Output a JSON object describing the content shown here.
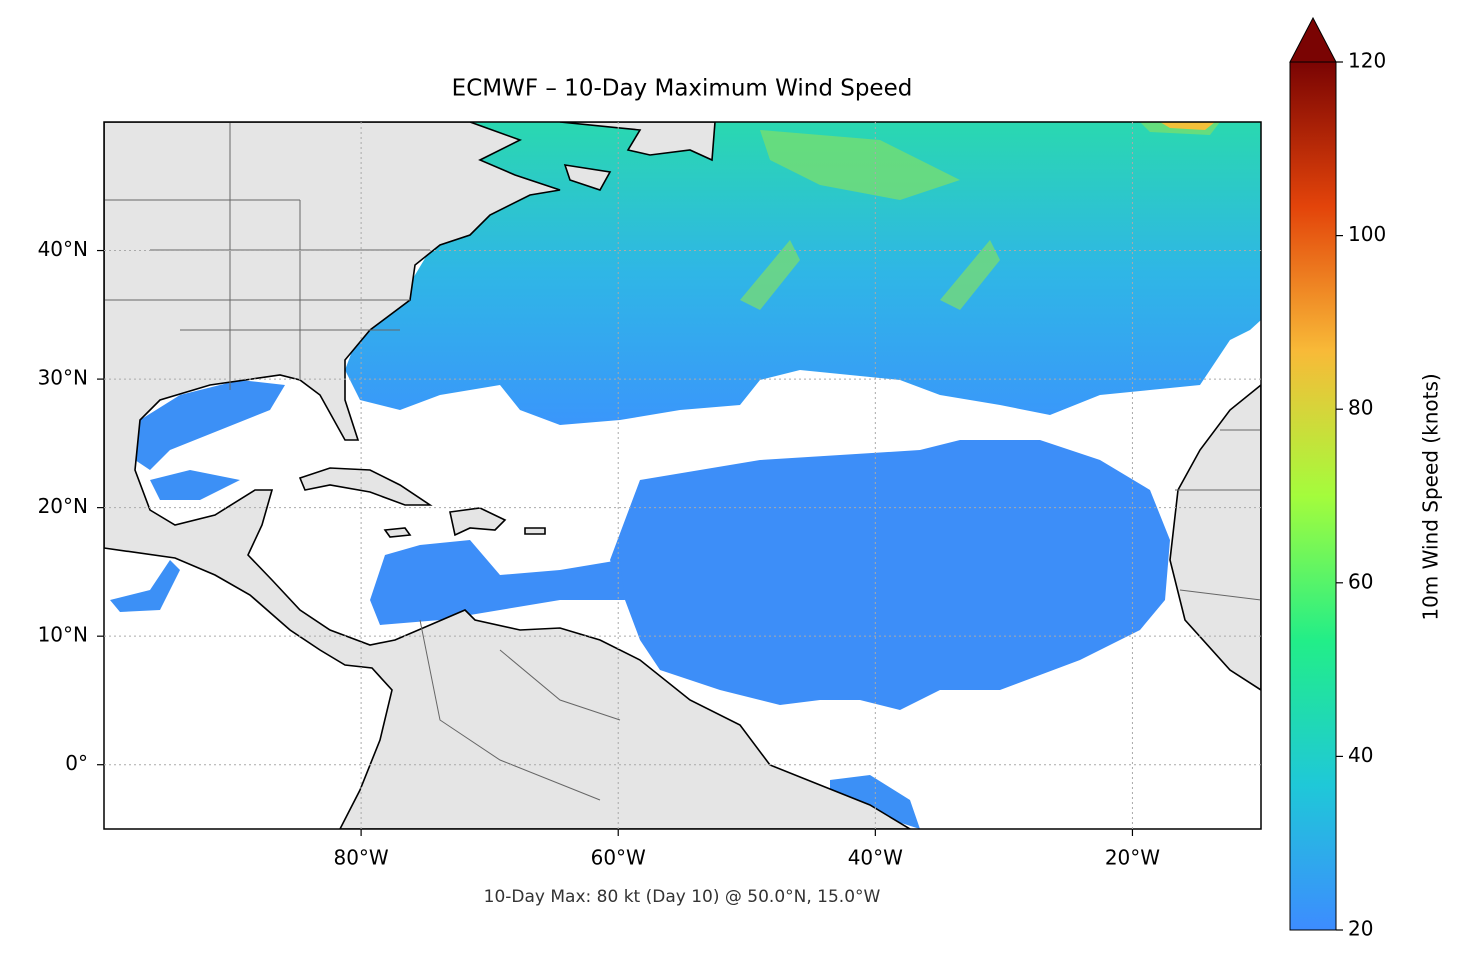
{
  "chart_data": {
    "type": "map",
    "title": "ECMWF – 10-Day Maximum Wind Speed",
    "annotation": "10-Day Max: 80 kt (Day 10) @ 50.0°N, 15.0°W",
    "xlim": [
      -100,
      -10
    ],
    "ylim": [
      -5,
      50
    ],
    "xticks": [
      {
        "value": -80,
        "label": "80°W"
      },
      {
        "value": -60,
        "label": "60°W"
      },
      {
        "value": -40,
        "label": "40°W"
      },
      {
        "value": -20,
        "label": "20°W"
      }
    ],
    "yticks": [
      {
        "value": 0,
        "label": "0°"
      },
      {
        "value": 10,
        "label": "10°N"
      },
      {
        "value": 20,
        "label": "20°N"
      },
      {
        "value": 30,
        "label": "30°N"
      },
      {
        "value": 40,
        "label": "40°N"
      }
    ],
    "grid": true,
    "colorbar": {
      "label": "10m Wind Speed (knots)",
      "lim": [
        20,
        120
      ],
      "ticks": [
        20,
        40,
        60,
        80,
        100,
        120
      ],
      "colormap": [
        "#3d8cff",
        "#1fc8d8",
        "#22ee88",
        "#a4fc3c",
        "#f8ba38",
        "#e3440a",
        "#7a0403"
      ],
      "extend": "max"
    }
  }
}
